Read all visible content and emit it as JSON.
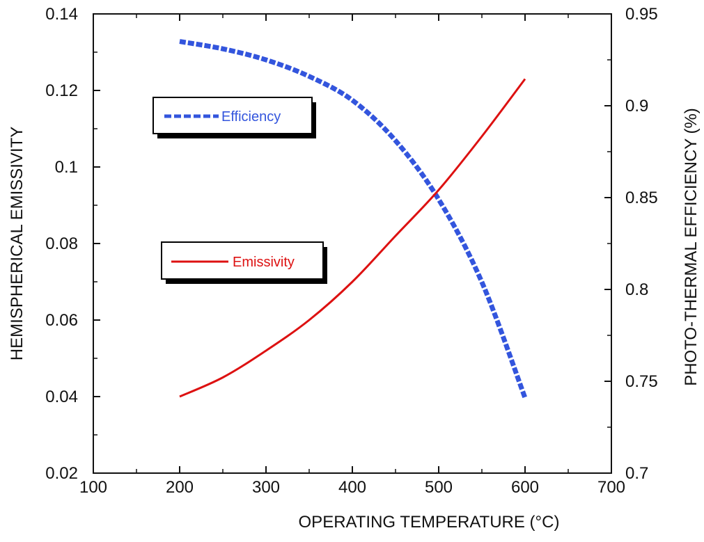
{
  "chart_data": {
    "type": "line",
    "xlabel": "OPERATING TEMPERATURE  (°C)",
    "ylabel_left": "HEMISPHERICAL EMISSIVITY",
    "ylabel_right": "PHOTO-THERMAL EFFICIENCY  (%)",
    "xlim": [
      100,
      700
    ],
    "ylim_left": [
      0.02,
      0.14
    ],
    "ylim_right": [
      0.7,
      0.95
    ],
    "x_ticks": [
      "100",
      "200",
      "300",
      "400",
      "500",
      "600",
      "700"
    ],
    "y_left_ticks": [
      "0.02",
      "0.04",
      "0.06",
      "0.08",
      "0.1",
      "0.12",
      "0.14"
    ],
    "y_right_ticks": [
      "0.7",
      "0.75",
      "0.8",
      "0.85",
      "0.9",
      "0.95"
    ],
    "grid": false,
    "series": [
      {
        "name": "Efficiency",
        "axis": "right",
        "color": "#3355dd",
        "style": "dashed",
        "x": [
          200,
          250,
          300,
          350,
          400,
          450,
          500,
          550,
          600
        ],
        "y": [
          0.935,
          0.931,
          0.925,
          0.916,
          0.903,
          0.881,
          0.849,
          0.804,
          0.741
        ]
      },
      {
        "name": "Emissivity",
        "axis": "left",
        "color": "#dd1111",
        "style": "solid",
        "x": [
          200,
          250,
          300,
          350,
          400,
          450,
          500,
          550,
          600
        ],
        "y": [
          0.04,
          0.045,
          0.052,
          0.06,
          0.07,
          0.082,
          0.094,
          0.108,
          0.123
        ]
      }
    ]
  }
}
